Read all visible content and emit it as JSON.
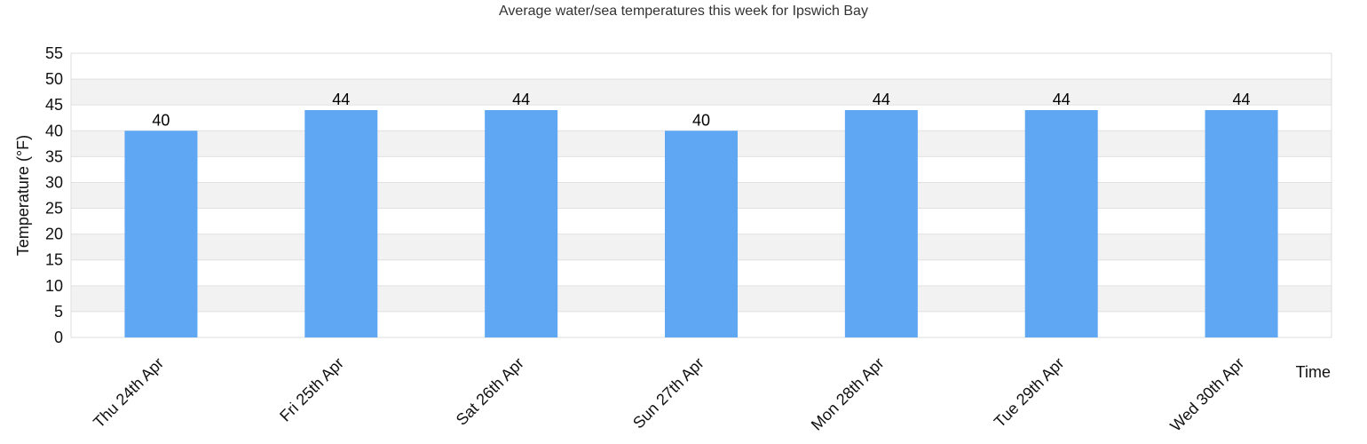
{
  "chart_data": {
    "type": "bar",
    "title": "Average water/sea temperatures this week for Ipswich Bay",
    "xlabel": "Time",
    "ylabel": "Temperature (°F)",
    "categories": [
      "Thu 24th Apr",
      "Fri 25th Apr",
      "Sat 26th Apr",
      "Sun 27th Apr",
      "Mon 28th Apr",
      "Tue 29th Apr",
      "Wed 30th Apr"
    ],
    "values": [
      40,
      44,
      44,
      40,
      44,
      44,
      44
    ],
    "ylim": [
      0,
      55
    ],
    "yticks": [
      0,
      5,
      10,
      15,
      20,
      25,
      30,
      35,
      40,
      45,
      50,
      55
    ],
    "grid": true,
    "legend": "none",
    "colors": {
      "bar": "#5fa7f3",
      "band_alt": "#f2f2f2",
      "band": "#ffffff",
      "gridline": "#e0e0e0"
    }
  }
}
